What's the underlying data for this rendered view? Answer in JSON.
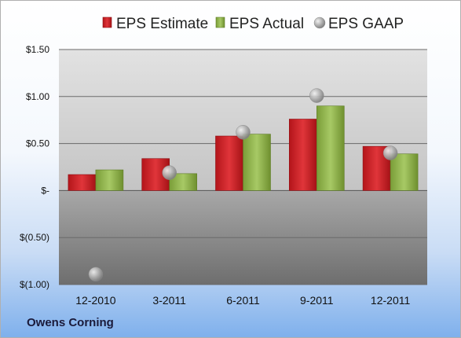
{
  "company": "Owens Corning",
  "colors": {
    "estimate": "#cc1f24",
    "actual": "#8fb34a",
    "gaap": "#a9a9a9"
  },
  "chart_data": {
    "type": "bar",
    "categories": [
      "12-2010",
      "3-2011",
      "6-2011",
      "9-2011",
      "12-2011"
    ],
    "series": [
      {
        "name": "EPS Estimate",
        "kind": "bar",
        "values": [
          0.17,
          0.34,
          0.58,
          0.76,
          0.47
        ]
      },
      {
        "name": "EPS Actual",
        "kind": "bar",
        "values": [
          0.22,
          0.18,
          0.6,
          0.9,
          0.39
        ]
      },
      {
        "name": "EPS GAAP",
        "kind": "marker",
        "values": [
          -0.89,
          0.19,
          0.62,
          1.01,
          0.4
        ]
      }
    ],
    "ylim": [
      -1.0,
      1.5
    ],
    "yticks": [
      1.5,
      1.0,
      0.5,
      0,
      -0.5,
      -1.0
    ],
    "ytick_labels": [
      "$1.50",
      "$1.00",
      "$0.50",
      "$-",
      "$(0.50)",
      "$(1.00)"
    ],
    "grid": true,
    "legend": "top"
  }
}
